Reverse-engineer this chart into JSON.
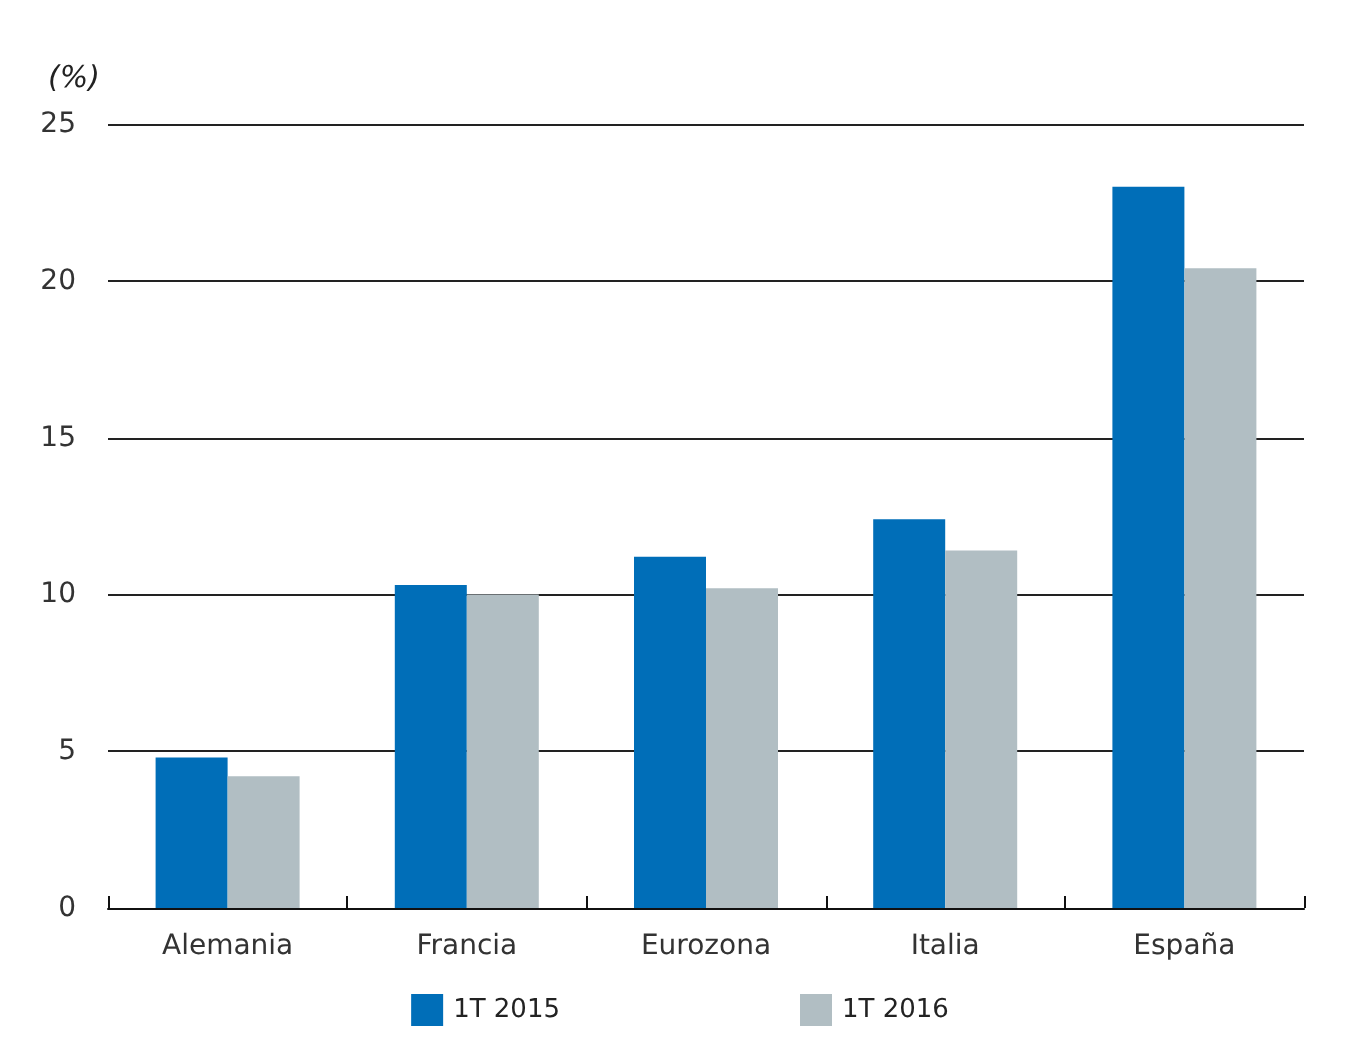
{
  "chart_data": {
    "type": "bar",
    "ylabel": "(%)",
    "categories": [
      "Alemania",
      "Francia",
      "Eurozona",
      "Italia",
      "España"
    ],
    "series": [
      {
        "name": "1T 2015",
        "color": "#006eb8",
        "values": [
          4.8,
          10.3,
          11.2,
          12.4,
          23.0
        ]
      },
      {
        "name": "1T 2016",
        "color": "#b1bec3",
        "values": [
          4.2,
          10.0,
          10.2,
          11.4,
          20.4
        ]
      }
    ],
    "ylim": [
      0,
      25
    ],
    "yticks": [
      0,
      5,
      10,
      15,
      20,
      25
    ],
    "grid": "y",
    "legend": "bottom"
  }
}
